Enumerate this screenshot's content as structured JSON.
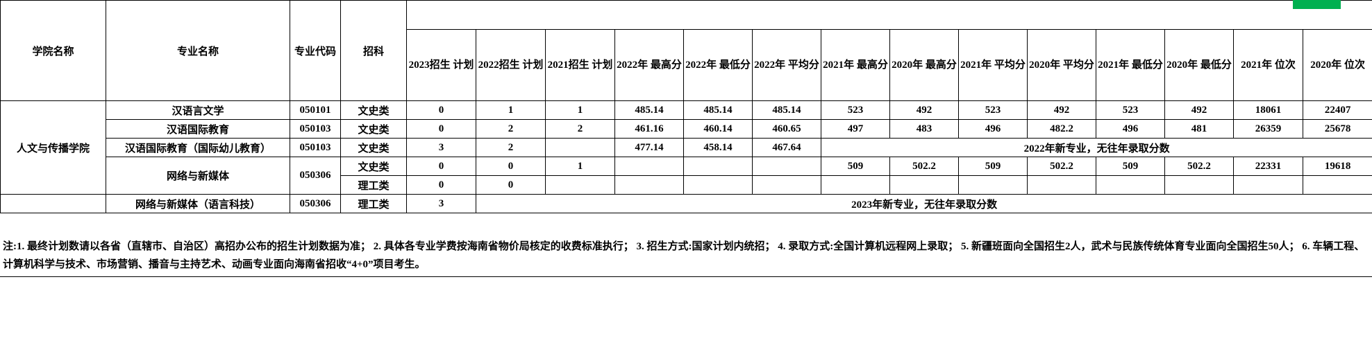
{
  "highlight": {
    "color": "#00B050"
  },
  "table": {
    "headers": {
      "college": "学院名称",
      "major": "专业名称",
      "code": "专业代码",
      "subject": "招科",
      "stats": [
        {
          "key": "plan-2023",
          "label": "2023招生\n计划"
        },
        {
          "key": "plan-2022",
          "label": "2022招生\n计划"
        },
        {
          "key": "plan-2021",
          "label": "2021招生\n计划"
        },
        {
          "key": "max-2022",
          "label": "2022年\n最高分"
        },
        {
          "key": "min-2022",
          "label": "2022年\n最低分"
        },
        {
          "key": "avg-2022",
          "label": "2022年\n平均分"
        },
        {
          "key": "max-2021",
          "label": "2021年\n最高分"
        },
        {
          "key": "max-2020",
          "label": "2020年\n最高分"
        },
        {
          "key": "avg-2021",
          "label": "2021年\n平均分"
        },
        {
          "key": "avg-2020",
          "label": "2020年\n平均分"
        },
        {
          "key": "min-2021",
          "label": "2021年\n最低分"
        },
        {
          "key": "min-2020",
          "label": "2020年\n最低分"
        },
        {
          "key": "rank-2021",
          "label": "2021年\n位次"
        },
        {
          "key": "rank-2020",
          "label": "2020年\n位次"
        }
      ]
    },
    "rows": [
      [
        {
          "t": "人文与传播学院",
          "rs": 5,
          "n": "college-name-cell"
        },
        {
          "t": "汉语言文学",
          "n": "major-name-cell"
        },
        {
          "t": "050101",
          "n": "major-code-cell"
        },
        {
          "t": "文史类",
          "n": "subject-type-cell"
        },
        {
          "t": "0"
        },
        {
          "t": "1"
        },
        {
          "t": "1"
        },
        {
          "t": "485.14"
        },
        {
          "t": "485.14"
        },
        {
          "t": "485.14"
        },
        {
          "t": "523"
        },
        {
          "t": "492"
        },
        {
          "t": "523"
        },
        {
          "t": "492"
        },
        {
          "t": "523"
        },
        {
          "t": "492"
        },
        {
          "t": "18061"
        },
        {
          "t": "22407"
        }
      ],
      [
        {
          "t": "汉语国际教育",
          "n": "major-name-cell"
        },
        {
          "t": "050103",
          "n": "major-code-cell"
        },
        {
          "t": "文史类",
          "n": "subject-type-cell"
        },
        {
          "t": "0"
        },
        {
          "t": "2"
        },
        {
          "t": "2"
        },
        {
          "t": "461.16"
        },
        {
          "t": "460.14"
        },
        {
          "t": "460.65"
        },
        {
          "t": "497"
        },
        {
          "t": "483"
        },
        {
          "t": "496"
        },
        {
          "t": "482.2"
        },
        {
          "t": "496"
        },
        {
          "t": "481"
        },
        {
          "t": "26359"
        },
        {
          "t": "25678"
        }
      ],
      [
        {
          "t": "汉语国际教育（国际幼儿教育）",
          "n": "major-name-cell"
        },
        {
          "t": "050103",
          "n": "major-code-cell"
        },
        {
          "t": "文史类",
          "n": "subject-type-cell"
        },
        {
          "t": "3"
        },
        {
          "t": "2"
        },
        {
          "t": ""
        },
        {
          "t": "477.14"
        },
        {
          "t": "458.14"
        },
        {
          "t": "467.64"
        },
        {
          "t": "2022年新专业，无往年录取分数",
          "cs": 8,
          "n": "new-major-note-cell"
        }
      ],
      [
        {
          "t": "网络与新媒体",
          "rs": 2,
          "n": "major-name-cell"
        },
        {
          "t": "050306",
          "rs": 2,
          "n": "major-code-cell"
        },
        {
          "t": "文史类",
          "n": "subject-type-cell"
        },
        {
          "t": "0"
        },
        {
          "t": "0"
        },
        {
          "t": "1"
        },
        {
          "t": ""
        },
        {
          "t": ""
        },
        {
          "t": ""
        },
        {
          "t": "509"
        },
        {
          "t": "502.2"
        },
        {
          "t": "509"
        },
        {
          "t": "502.2"
        },
        {
          "t": "509"
        },
        {
          "t": "502.2"
        },
        {
          "t": "22331"
        },
        {
          "t": "19618"
        }
      ],
      [
        {
          "t": "理工类",
          "n": "subject-type-cell"
        },
        {
          "t": "0"
        },
        {
          "t": "0"
        },
        {
          "t": ""
        },
        {
          "t": ""
        },
        {
          "t": ""
        },
        {
          "t": ""
        },
        {
          "t": ""
        },
        {
          "t": ""
        },
        {
          "t": ""
        },
        {
          "t": ""
        },
        {
          "t": ""
        },
        {
          "t": ""
        },
        {
          "t": ""
        },
        {
          "t": ""
        }
      ],
      [
        {
          "t": "",
          "n": "college-name-cell"
        },
        {
          "t": "网络与新媒体（语言科技）",
          "n": "major-name-cell"
        },
        {
          "t": "050306",
          "n": "major-code-cell"
        },
        {
          "t": "理工类",
          "n": "subject-type-cell"
        },
        {
          "t": "3"
        },
        {
          "t": "2023年新专业，无往年录取分数",
          "cs": 13,
          "n": "new-major-note-cell"
        }
      ]
    ]
  },
  "note": {
    "text": "注:1. 最终计划数请以各省（直辖市、自治区）高招办公布的招生计划数据为准；  2.  具体各专业学费按海南省物价局核定的收费标准执行；  3.  招生方式:国家计划内统招；  4.  录取方式:全国计算机远程网上录取；  5.  新疆班面向全国招生2人，武术与民族传统体育专业面向全国招生50人；  6.  车辆工程、计算机科学与技术、市场营销、播音与主持艺术、动画专业面向海南省招收“4+0”项目考生。"
  }
}
